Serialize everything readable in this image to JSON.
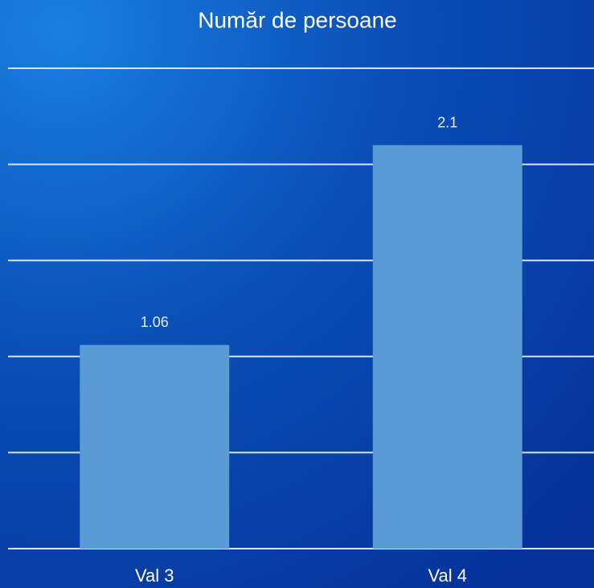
{
  "chart_data": {
    "type": "bar",
    "title": "Număr de persoane",
    "categories": [
      "Val 3",
      "Val 4"
    ],
    "values": [
      1.06,
      2.1
    ],
    "color": "#5b9bd5",
    "ylim": [
      0,
      2.5
    ],
    "yticks": [
      0,
      0.5,
      1,
      1.5,
      2,
      2.5
    ],
    "grid": true
  }
}
